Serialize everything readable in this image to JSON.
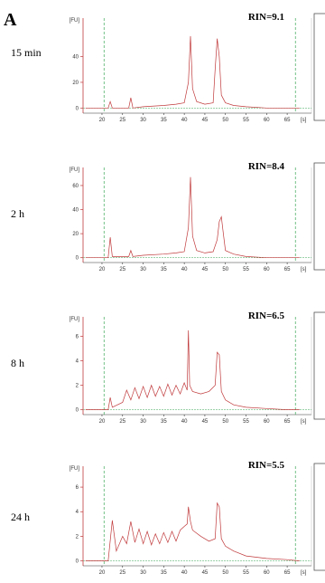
{
  "panel_label": "A",
  "chart_data": [
    {
      "type": "line",
      "label": "15 min",
      "annotation": "RIN=9.1",
      "y_label": "[FU]",
      "x_label": "[s]",
      "color": "#c0393b",
      "xlim": [
        15.4,
        70.9
      ],
      "xticks": [
        20,
        25,
        30,
        35,
        40,
        45,
        50,
        55,
        60,
        65
      ],
      "ylim": [
        -4,
        70
      ],
      "yticks": [
        0,
        20,
        40
      ],
      "vlines": [
        20.5,
        67
      ],
      "x": [
        16,
        21.5,
        22,
        22.5,
        26.5,
        27,
        27.5,
        30,
        35,
        38,
        40,
        41,
        41.5,
        42,
        43,
        45,
        47,
        47.5,
        48,
        48.5,
        49,
        50,
        52,
        55,
        60,
        65,
        68
      ],
      "values": [
        0,
        0,
        5,
        0,
        0,
        8,
        0,
        1,
        2,
        3,
        4,
        20,
        56,
        15,
        5,
        3,
        4,
        30,
        54,
        40,
        10,
        4,
        2,
        1,
        0,
        0,
        0
      ]
    },
    {
      "type": "line",
      "label": "2 h",
      "annotation": "RIN=8.4",
      "y_label": "[FU]",
      "x_label": "[s]",
      "color": "#c0393b",
      "xlim": [
        15.4,
        70.9
      ],
      "xticks": [
        20,
        25,
        30,
        35,
        40,
        45,
        50,
        55,
        60,
        65
      ],
      "ylim": [
        -4,
        75
      ],
      "yticks": [
        0,
        20,
        40,
        60
      ],
      "vlines": [
        20.5,
        67
      ],
      "x": [
        16,
        21.5,
        22,
        22.5,
        26.5,
        27,
        27.5,
        30,
        35,
        38,
        40,
        41,
        41.5,
        42,
        43,
        45,
        47,
        48,
        48.5,
        49,
        49.5,
        50,
        52,
        55,
        60,
        65,
        68
      ],
      "values": [
        0,
        0,
        17,
        1,
        1,
        6,
        1,
        2,
        3,
        4,
        5,
        25,
        67,
        18,
        6,
        4,
        5,
        15,
        30,
        34,
        20,
        6,
        3,
        1,
        0,
        0,
        0
      ]
    },
    {
      "type": "line",
      "label": "8 h",
      "annotation": "RIN=6.5",
      "y_label": "[FU]",
      "x_label": "[s]",
      "color": "#c0393b",
      "xlim": [
        15.4,
        70.9
      ],
      "xticks": [
        20,
        25,
        30,
        35,
        40,
        45,
        50,
        55,
        60,
        65
      ],
      "ylim": [
        -0.4,
        7.6
      ],
      "yticks": [
        0,
        2,
        4,
        6
      ],
      "vlines": [
        20.5,
        67
      ],
      "x": [
        16,
        21.5,
        22,
        22.5,
        25,
        26,
        27,
        28,
        29,
        30,
        31,
        32,
        33,
        34,
        35,
        36,
        37,
        38,
        39,
        40,
        40.7,
        41,
        41.3,
        42,
        44,
        46,
        47.5,
        48,
        48.5,
        49,
        50,
        52,
        55,
        60,
        65,
        68
      ],
      "values": [
        0,
        0,
        1,
        0.2,
        0.6,
        1.6,
        0.8,
        1.8,
        0.9,
        1.9,
        1,
        2,
        1.1,
        1.9,
        1.1,
        2.1,
        1.2,
        2,
        1.3,
        2.2,
        1.6,
        6.5,
        2,
        1.5,
        1.3,
        1.5,
        2,
        4.7,
        4.5,
        1.5,
        0.8,
        0.4,
        0.2,
        0.1,
        0,
        0
      ]
    },
    {
      "type": "line",
      "label": "24 h",
      "annotation": "RIN=5.5",
      "y_label": "[FU]",
      "x_label": "[s]",
      "color": "#c0393b",
      "xlim": [
        15.4,
        70.9
      ],
      "xticks": [
        20,
        25,
        30,
        35,
        40,
        45,
        50,
        55,
        60,
        65
      ],
      "ylim": [
        -0.4,
        7.7
      ],
      "yticks": [
        0,
        2,
        4,
        6
      ],
      "vlines": [
        20.5,
        67
      ],
      "x": [
        16,
        21.5,
        22.5,
        23.5,
        25,
        26,
        27,
        28,
        29,
        30,
        31,
        32,
        33,
        34,
        35,
        36,
        37,
        38,
        39,
        40,
        40.7,
        41,
        41.5,
        42,
        44,
        46,
        47.5,
        48,
        48.5,
        49,
        50,
        52,
        55,
        60,
        65,
        68
      ],
      "values": [
        0,
        0,
        3.3,
        0.8,
        2,
        1.4,
        3.2,
        1.5,
        2.6,
        1.4,
        2.4,
        1.3,
        2.2,
        1.4,
        2.3,
        1.5,
        2.4,
        1.6,
        2.5,
        2.8,
        3,
        4.4,
        3.2,
        2.5,
        2,
        1.6,
        1.8,
        4.7,
        4.4,
        1.8,
        1.2,
        0.8,
        0.4,
        0.2,
        0.1,
        0
      ]
    }
  ]
}
